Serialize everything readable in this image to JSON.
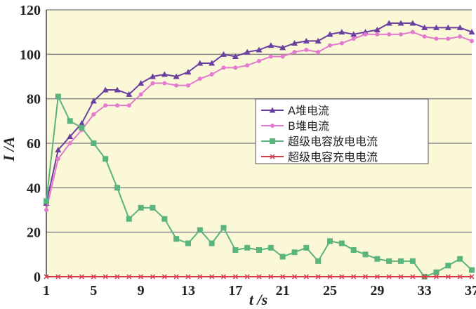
{
  "chart_data": {
    "type": "line",
    "title": "",
    "xlabel": "t /s",
    "ylabel": "I /A",
    "xlim": [
      1,
      37
    ],
    "ylim": [
      0,
      120
    ],
    "xticks": [
      1,
      5,
      9,
      13,
      17,
      21,
      25,
      29,
      33,
      37
    ],
    "yticks": [
      0,
      20,
      40,
      60,
      80,
      100,
      120
    ],
    "grid": "horizontal",
    "legend_position": "center-right",
    "background": "#fbf8d8",
    "x": [
      1,
      2,
      3,
      4,
      5,
      6,
      7,
      8,
      9,
      10,
      11,
      12,
      13,
      14,
      15,
      16,
      17,
      18,
      19,
      20,
      21,
      22,
      23,
      24,
      25,
      26,
      27,
      28,
      29,
      30,
      31,
      32,
      33,
      34,
      35,
      36,
      37
    ],
    "series": [
      {
        "name": "A堆电流",
        "color": "#6a3fa0",
        "marker": "triangle",
        "values": [
          33,
          57,
          63,
          69,
          79,
          84,
          84,
          82,
          87,
          90,
          91,
          90,
          92,
          96,
          96,
          100,
          99,
          101,
          102,
          104,
          103,
          105,
          106,
          106,
          109,
          110,
          109,
          110,
          111,
          114,
          114,
          114,
          112,
          112,
          112,
          112,
          110
        ]
      },
      {
        "name": "B堆电流",
        "color": "#e37ad0",
        "marker": "circle",
        "values": [
          30,
          53,
          60,
          66,
          73,
          77,
          77,
          77,
          82,
          87,
          87,
          86,
          86,
          89,
          91,
          94,
          94,
          95,
          97,
          99,
          99,
          101,
          102,
          101,
          104,
          105,
          107,
          109,
          109,
          109,
          109,
          110,
          108,
          107,
          107,
          108,
          106
        ]
      },
      {
        "name": "超级电容放电电流",
        "color": "#5ab47e",
        "marker": "square",
        "values": [
          34,
          81,
          70,
          67,
          60,
          53,
          40,
          26,
          31,
          31,
          26,
          17,
          15,
          21,
          15,
          22,
          12,
          13,
          12,
          13,
          9,
          11,
          13,
          7,
          16,
          15,
          12,
          10,
          8,
          7,
          7,
          7,
          0,
          2,
          5,
          8,
          3
        ]
      },
      {
        "name": "超级电容充电电流",
        "color": "#d43c4c",
        "marker": "cross",
        "values": [
          0,
          0,
          0,
          0,
          0,
          0,
          0,
          0,
          0,
          0,
          0,
          0,
          0,
          0,
          0,
          0,
          0,
          0,
          0,
          0,
          0,
          0,
          0,
          0,
          0,
          0,
          0,
          0,
          0,
          0,
          0,
          0,
          0,
          0,
          0,
          0,
          0
        ]
      }
    ]
  }
}
